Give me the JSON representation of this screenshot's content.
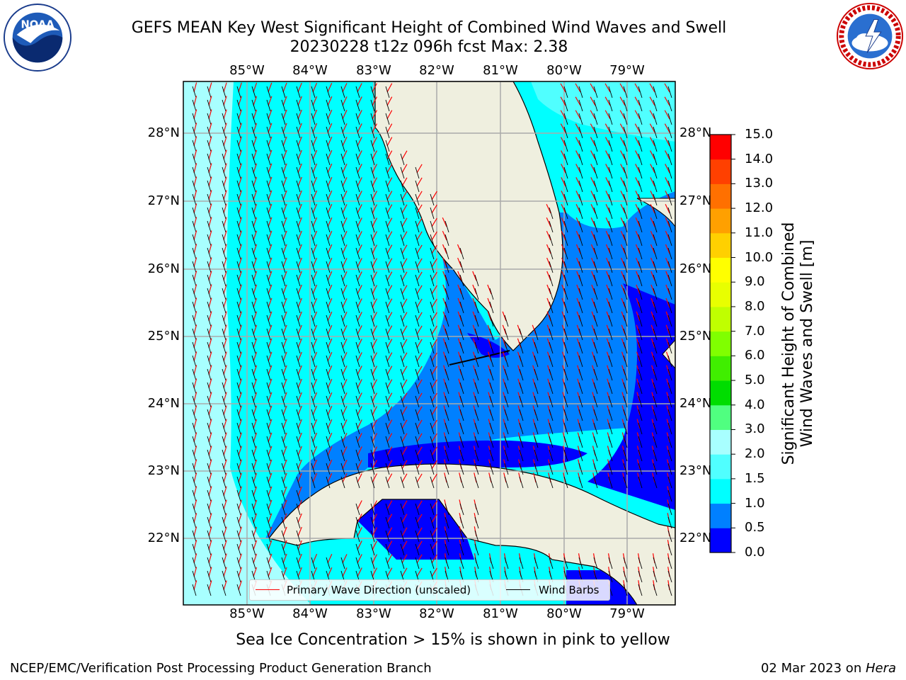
{
  "title_line1": "GEFS MEAN Key West Significant Height of Combined Wind Waves and Swell",
  "title_line2": "20230228 t12z 096h fcst   Max: 2.38",
  "lon_labels": [
    "85°W",
    "84°W",
    "83°W",
    "82°W",
    "81°W",
    "80°W",
    "79°W"
  ],
  "lat_labels": [
    "28°N",
    "27°N",
    "26°N",
    "25°N",
    "24°N",
    "23°N",
    "22°N"
  ],
  "legend": {
    "wave_label": "Primary Wave Direction (unscaled)",
    "wind_label": "Wind Barbs",
    "wave_color": "#ff0000",
    "wind_color": "#000000"
  },
  "colorbar": {
    "label_line1": "Significant Height of Combined",
    "label_line2": "Wind Waves and Swell [m]",
    "ticks": [
      "0.0",
      "0.5",
      "1.0",
      "1.5",
      "2.0",
      "3.0",
      "4.0",
      "5.0",
      "6.0",
      "7.0",
      "8.0",
      "9.0",
      "10.0",
      "11.0",
      "12.0",
      "13.0",
      "14.0",
      "15.0"
    ],
    "colors": [
      "#0000ff",
      "#0080ff",
      "#00ffff",
      "#50ffff",
      "#a8ffff",
      "#50ff80",
      "#00dd00",
      "#40ee00",
      "#80ff00",
      "#c0ff00",
      "#e8ff00",
      "#ffff00",
      "#ffd000",
      "#ffa000",
      "#ff7000",
      "#ff4000",
      "#ff0000"
    ]
  },
  "logos": {
    "noaa_text": "NOAA"
  },
  "footnote": "Sea Ice Concentration > 15% is shown in pink to yellow",
  "footer_left": "NCEP/EMC/Verification Post Processing Product Generation Branch",
  "footer_right_date": "02 Mar 2023 on ",
  "footer_right_host": "Hera"
}
